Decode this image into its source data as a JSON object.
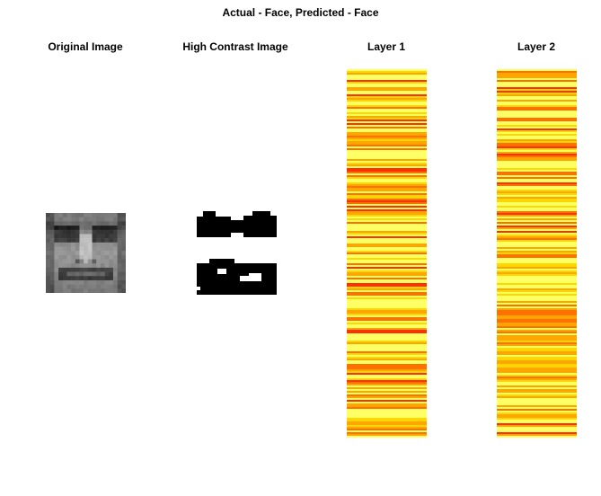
{
  "figure": {
    "title": "Actual - Face, Predicted - Face"
  },
  "panels": {
    "original": {
      "title": "Original Image"
    },
    "contrast": {
      "title": "High Contrast Image"
    },
    "layer1": {
      "title": "Layer 1"
    },
    "layer2": {
      "title": "Layer 2"
    }
  },
  "colors": {
    "background": "#ffffff",
    "heat_low": "#ffff66",
    "heat_mid": "#ffa500",
    "heat_high": "#ff3000",
    "contrast_fg": "#000000"
  }
}
